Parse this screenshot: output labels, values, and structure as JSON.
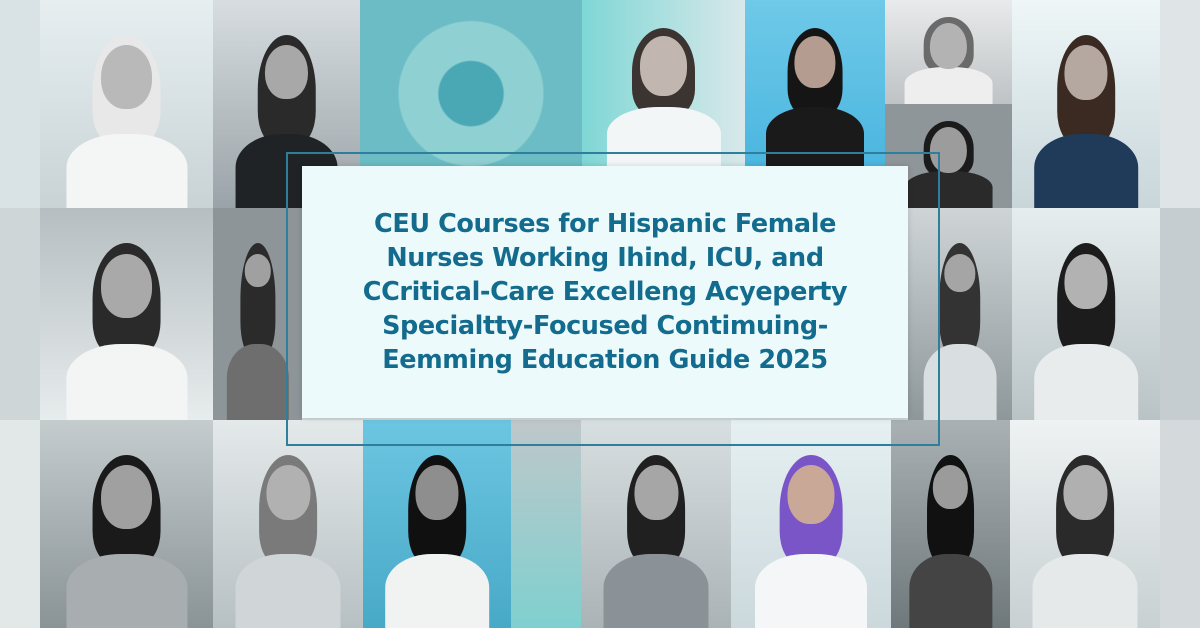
{
  "title": {
    "lines": [
      "CEU Courses for Hispanic Female",
      "Nurses Working Ihind, ICU, and",
      "CCritical-Care Excelleng Acyeperty",
      "Specialtty-Focused Contimuing-",
      "Eemming Education Guide 2025"
    ]
  },
  "colors": {
    "title_text": "#136c8d",
    "title_box": "#edfafb",
    "accent_teal": "#6fd0d4",
    "accent_blue": "#2f7f9c"
  }
}
